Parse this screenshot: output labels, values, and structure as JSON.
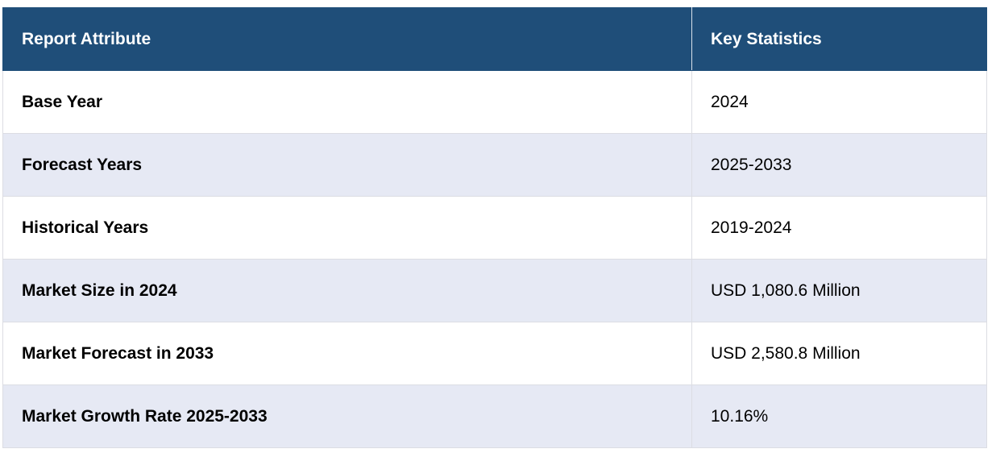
{
  "table": {
    "headers": [
      "Report Attribute",
      "Key Statistics"
    ],
    "rows": [
      {
        "attribute": "Base Year",
        "value": "2024"
      },
      {
        "attribute": "Forecast Years",
        "value": "2025-2033"
      },
      {
        "attribute": "Historical Years",
        "value": "2019-2024"
      },
      {
        "attribute": "Market Size in 2024",
        "value": "USD 1,080.6 Million"
      },
      {
        "attribute": "Market Forecast in 2033",
        "value": "USD 2,580.8 Million"
      },
      {
        "attribute": "Market Growth Rate 2025-2033",
        "value": "10.16%"
      }
    ]
  },
  "colors": {
    "header_bg": "#1f4e79",
    "stripe_bg": "#e6e9f4"
  }
}
